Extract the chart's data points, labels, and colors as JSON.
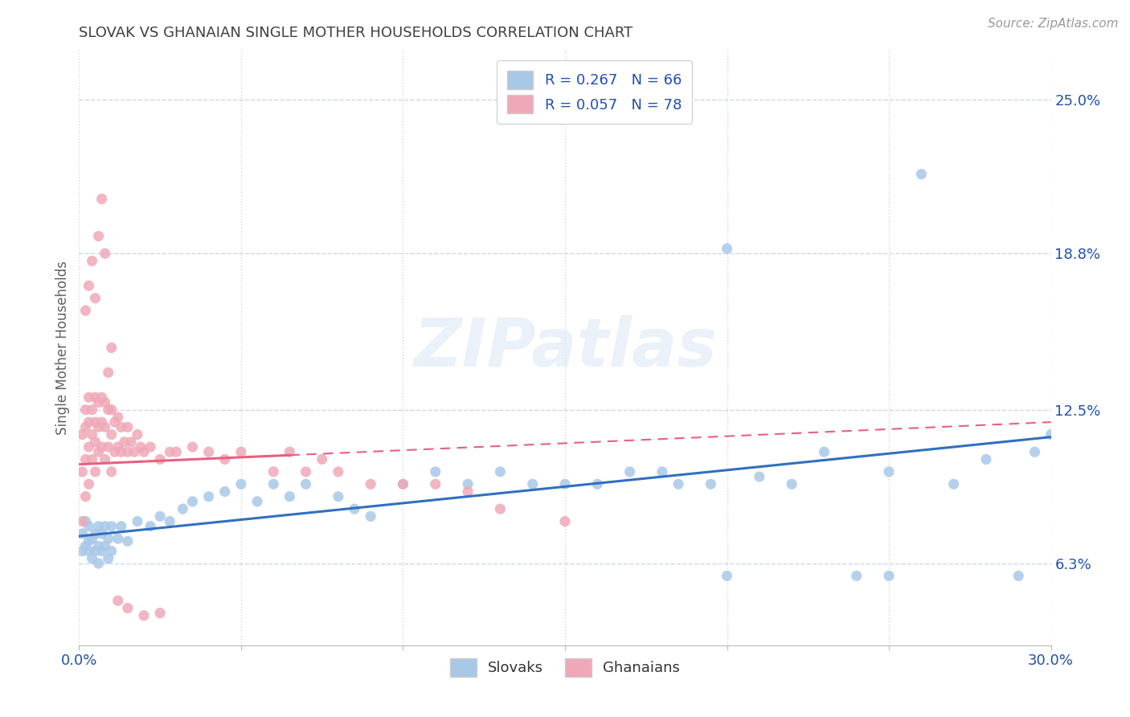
{
  "title": "SLOVAK VS GHANAIAN SINGLE MOTHER HOUSEHOLDS CORRELATION CHART",
  "source_text": "Source: ZipAtlas.com",
  "ylabel": "Single Mother Households",
  "xlim": [
    0.0,
    0.3
  ],
  "ylim": [
    0.03,
    0.27
  ],
  "yticks_right": [
    0.063,
    0.125,
    0.188,
    0.25
  ],
  "ytick_right_labels": [
    "6.3%",
    "12.5%",
    "18.8%",
    "25.0%"
  ],
  "slovak_color": "#a8c8e8",
  "ghanaian_color": "#f0a8b8",
  "slovak_line_color": "#3070c0",
  "ghanaian_line_color": "#e86080",
  "slovak_R": 0.267,
  "slovak_N": 66,
  "ghanaian_R": 0.057,
  "ghanaian_N": 78,
  "legend_text_color": "#2050b0",
  "watermark": "ZIPatlas",
  "background_color": "#ffffff",
  "grid_color": "#c8d8ec",
  "title_color": "#404040",
  "source_color": "#999999",
  "ylabel_color": "#606060",
  "xtick_color": "#2050b0",
  "ytick_right_color": "#2050b0",
  "bottom_legend_color": "#333333",
  "sk_x": [
    0.001,
    0.001,
    0.002,
    0.002,
    0.003,
    0.003,
    0.003,
    0.004,
    0.004,
    0.005,
    0.005,
    0.006,
    0.006,
    0.006,
    0.007,
    0.007,
    0.008,
    0.008,
    0.009,
    0.009,
    0.01,
    0.01,
    0.012,
    0.013,
    0.015,
    0.018,
    0.022,
    0.025,
    0.028,
    0.032,
    0.035,
    0.04,
    0.045,
    0.05,
    0.055,
    0.06,
    0.065,
    0.07,
    0.08,
    0.085,
    0.09,
    0.1,
    0.11,
    0.12,
    0.13,
    0.14,
    0.15,
    0.16,
    0.17,
    0.18,
    0.185,
    0.195,
    0.2,
    0.21,
    0.22,
    0.23,
    0.24,
    0.25,
    0.26,
    0.27,
    0.28,
    0.29,
    0.295,
    0.3,
    0.25,
    0.2
  ],
  "sk_y": [
    0.075,
    0.068,
    0.08,
    0.07,
    0.068,
    0.078,
    0.072,
    0.065,
    0.073,
    0.068,
    0.075,
    0.063,
    0.07,
    0.078,
    0.068,
    0.075,
    0.07,
    0.078,
    0.065,
    0.073,
    0.068,
    0.078,
    0.073,
    0.078,
    0.072,
    0.08,
    0.078,
    0.082,
    0.08,
    0.085,
    0.088,
    0.09,
    0.092,
    0.095,
    0.088,
    0.095,
    0.09,
    0.095,
    0.09,
    0.085,
    0.082,
    0.095,
    0.1,
    0.095,
    0.1,
    0.095,
    0.095,
    0.095,
    0.1,
    0.1,
    0.095,
    0.095,
    0.19,
    0.098,
    0.095,
    0.108,
    0.058,
    0.1,
    0.22,
    0.095,
    0.105,
    0.058,
    0.108,
    0.115,
    0.058,
    0.058
  ],
  "gh_x": [
    0.001,
    0.001,
    0.001,
    0.002,
    0.002,
    0.002,
    0.002,
    0.003,
    0.003,
    0.003,
    0.003,
    0.004,
    0.004,
    0.004,
    0.005,
    0.005,
    0.005,
    0.005,
    0.006,
    0.006,
    0.006,
    0.007,
    0.007,
    0.007,
    0.008,
    0.008,
    0.008,
    0.009,
    0.009,
    0.01,
    0.01,
    0.01,
    0.011,
    0.011,
    0.012,
    0.012,
    0.013,
    0.013,
    0.014,
    0.015,
    0.015,
    0.016,
    0.017,
    0.018,
    0.019,
    0.02,
    0.022,
    0.025,
    0.028,
    0.03,
    0.035,
    0.04,
    0.045,
    0.05,
    0.06,
    0.065,
    0.07,
    0.075,
    0.08,
    0.09,
    0.1,
    0.11,
    0.12,
    0.13,
    0.15,
    0.002,
    0.003,
    0.004,
    0.005,
    0.006,
    0.007,
    0.008,
    0.009,
    0.01,
    0.012,
    0.015,
    0.02,
    0.025
  ],
  "gh_y": [
    0.08,
    0.1,
    0.115,
    0.09,
    0.105,
    0.118,
    0.125,
    0.095,
    0.11,
    0.12,
    0.13,
    0.105,
    0.115,
    0.125,
    0.1,
    0.112,
    0.12,
    0.13,
    0.108,
    0.118,
    0.128,
    0.11,
    0.12,
    0.13,
    0.105,
    0.118,
    0.128,
    0.11,
    0.125,
    0.1,
    0.115,
    0.125,
    0.108,
    0.12,
    0.11,
    0.122,
    0.108,
    0.118,
    0.112,
    0.108,
    0.118,
    0.112,
    0.108,
    0.115,
    0.11,
    0.108,
    0.11,
    0.105,
    0.108,
    0.108,
    0.11,
    0.108,
    0.105,
    0.108,
    0.1,
    0.108,
    0.1,
    0.105,
    0.1,
    0.095,
    0.095,
    0.095,
    0.092,
    0.085,
    0.08,
    0.165,
    0.175,
    0.185,
    0.17,
    0.195,
    0.21,
    0.188,
    0.14,
    0.15,
    0.048,
    0.045,
    0.042,
    0.043
  ]
}
